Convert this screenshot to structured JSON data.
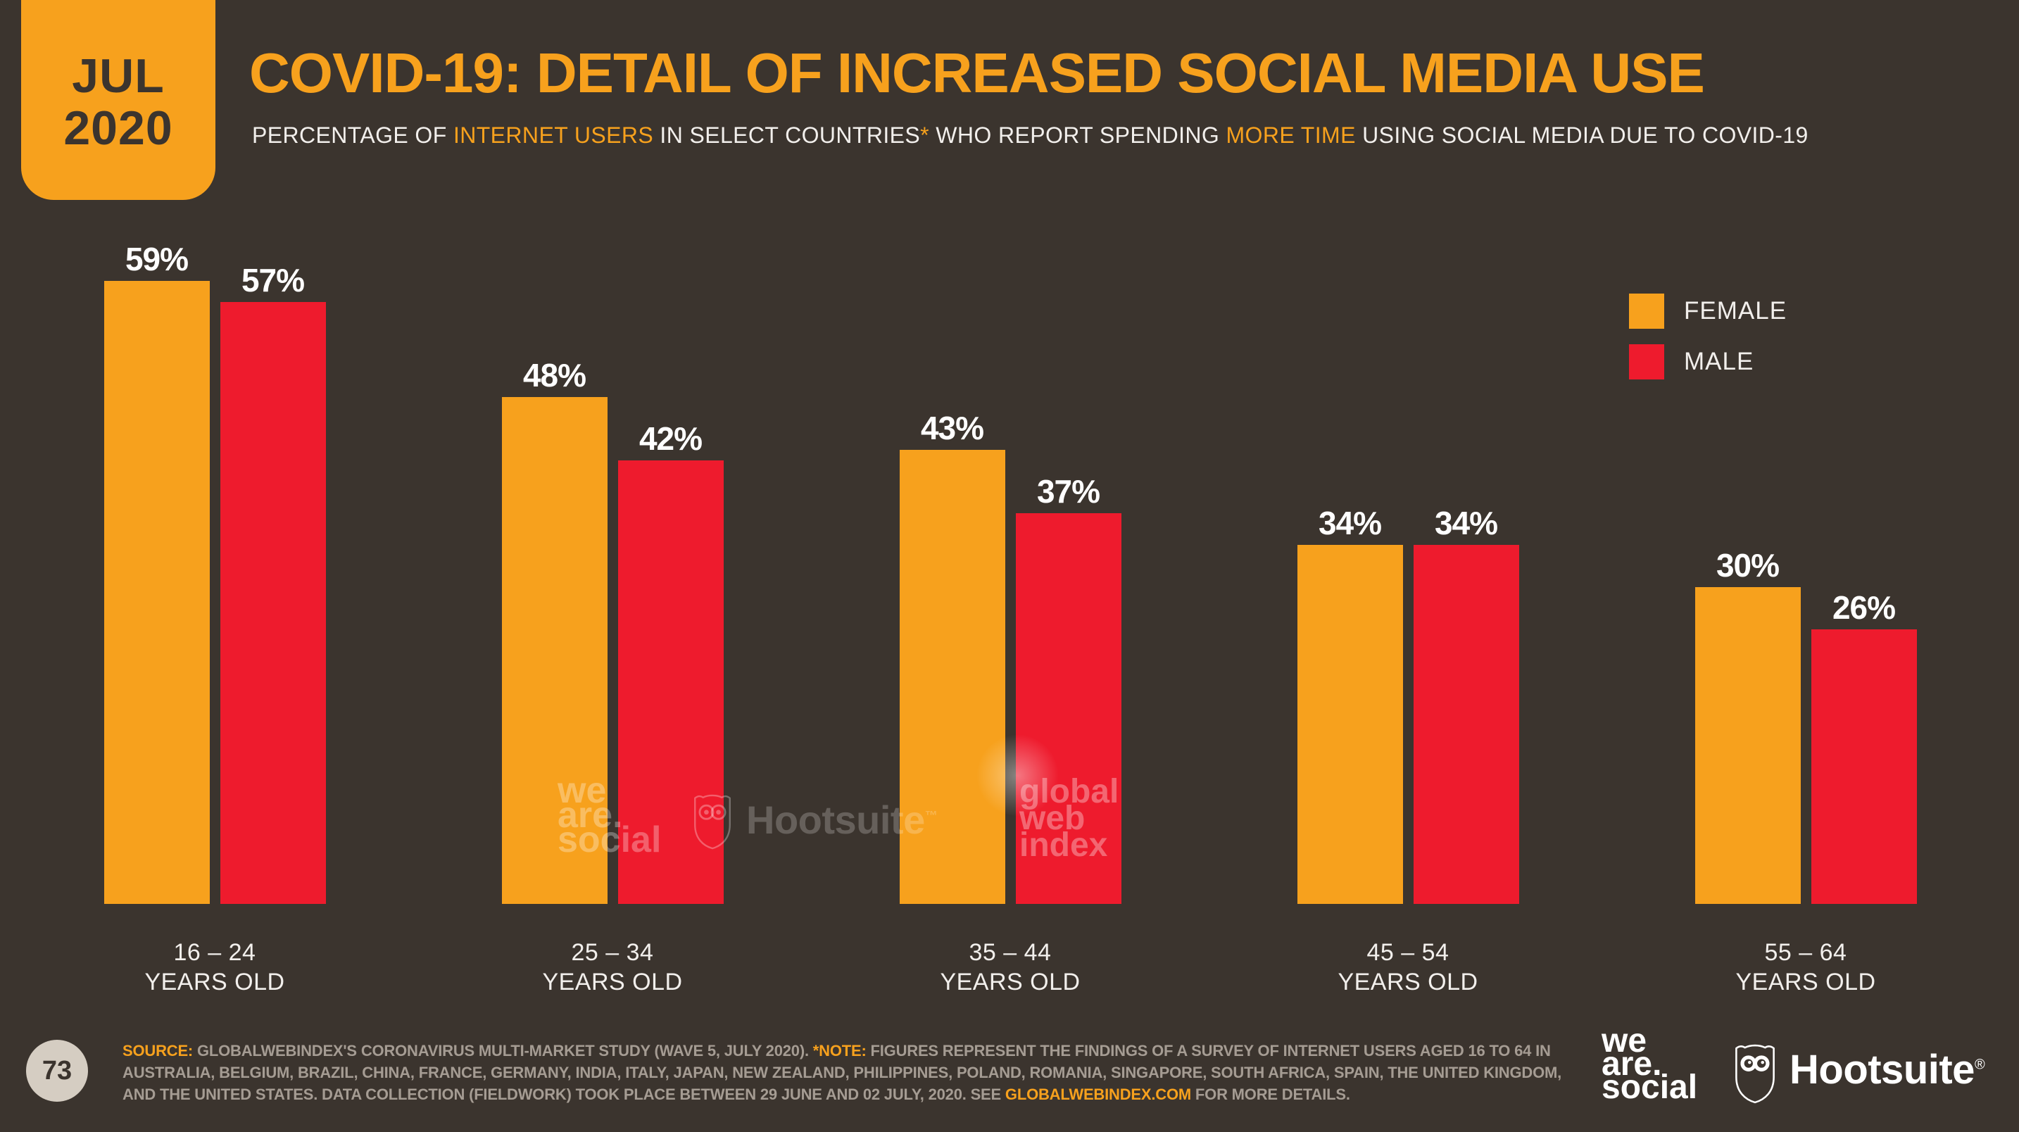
{
  "colors": {
    "background": "#3B342E",
    "accent_orange": "#F7A11D",
    "male_red": "#EE1B2D",
    "text_light": "#F2EFEC",
    "footer_text": "#A59C93",
    "page_badge": "#D5CDC2"
  },
  "badge": {
    "month": "JUL",
    "year": "2020"
  },
  "header": {
    "title": "COVID-19: DETAIL OF INCREASED SOCIAL MEDIA USE",
    "subtitle_parts": [
      {
        "text": "PERCENTAGE OF ",
        "highlight": false
      },
      {
        "text": "INTERNET USERS",
        "highlight": true
      },
      {
        "text": " IN SELECT COUNTRIES",
        "highlight": false
      },
      {
        "text": "*",
        "highlight": true
      },
      {
        "text": " WHO REPORT SPENDING ",
        "highlight": false
      },
      {
        "text": "MORE TIME",
        "highlight": true
      },
      {
        "text": " USING SOCIAL MEDIA DUE TO COVID-19",
        "highlight": false
      }
    ]
  },
  "legend": {
    "items": [
      {
        "label": "FEMALE",
        "color": "#F7A11D"
      },
      {
        "label": "MALE",
        "color": "#EE1B2D"
      }
    ]
  },
  "chart_data": {
    "type": "bar",
    "title": "COVID-19: DETAIL OF INCREASED SOCIAL MEDIA USE",
    "categories": [
      {
        "range": "16 – 24",
        "suffix": "YEARS OLD"
      },
      {
        "range": "25 – 34",
        "suffix": "YEARS OLD"
      },
      {
        "range": "35 – 44",
        "suffix": "YEARS OLD"
      },
      {
        "range": "45 – 54",
        "suffix": "YEARS OLD"
      },
      {
        "range": "55 – 64",
        "suffix": "YEARS OLD"
      }
    ],
    "series": [
      {
        "name": "FEMALE",
        "color": "#F7A11D",
        "values": [
          59,
          48,
          43,
          34,
          30
        ]
      },
      {
        "name": "MALE",
        "color": "#EE1B2D",
        "values": [
          57,
          42,
          37,
          34,
          26
        ]
      }
    ],
    "value_suffix": "%",
    "value_labels": true,
    "ylim": [
      0,
      65
    ],
    "grid": false,
    "legend_position": "top-right"
  },
  "watermarks": {
    "we_are_social_lines": [
      "we",
      "are.",
      "social"
    ],
    "hootsuite_label": "Hootsuite",
    "hootsuite_tm": "™",
    "global_web_index_lines": [
      "global",
      "web",
      "index"
    ]
  },
  "footer": {
    "page_number": "73",
    "source_lines": [
      {
        "parts": [
          {
            "text": "SOURCE:",
            "highlight": true
          },
          {
            "text": " GLOBALWEBINDEX'S CORONAVIRUS MULTI-MARKET STUDY (WAVE 5, JULY 2020). ",
            "highlight": false
          },
          {
            "text": "*NOTE:",
            "highlight": true
          },
          {
            "text": " FIGURES REPRESENT THE FINDINGS OF A SURVEY OF INTERNET USERS AGED 16 TO 64 IN",
            "highlight": false
          }
        ]
      },
      {
        "parts": [
          {
            "text": "AUSTRALIA, BELGIUM, BRAZIL, CHINA, FRANCE, GERMANY, INDIA, ITALY, JAPAN, NEW ZEALAND, PHILIPPINES, POLAND, ROMANIA, SINGAPORE, SOUTH AFRICA, SPAIN, THE UNITED KINGDOM,",
            "highlight": false
          }
        ]
      },
      {
        "parts": [
          {
            "text": "AND THE UNITED STATES. DATA COLLECTION (FIELDWORK) TOOK PLACE BETWEEN 29 JUNE AND 02 JULY, 2020. SEE ",
            "highlight": false
          },
          {
            "text": "GLOBALWEBINDEX.COM",
            "highlight": true,
            "link": true
          },
          {
            "text": " FOR MORE DETAILS.",
            "highlight": false
          }
        ]
      }
    ],
    "wearesocial_lines": [
      "we",
      "are.",
      "social"
    ],
    "hootsuite_label": "Hootsuite",
    "hootsuite_reg": "®"
  }
}
